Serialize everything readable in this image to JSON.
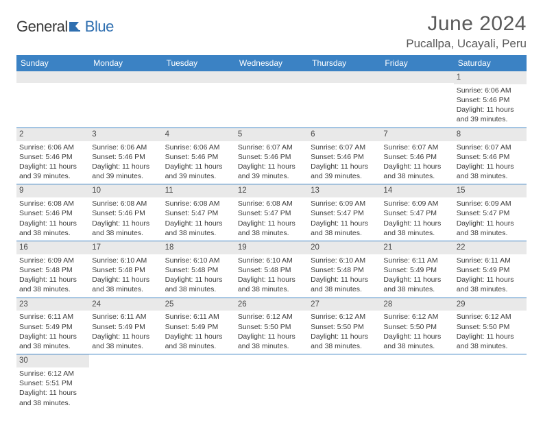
{
  "brand": {
    "part1": "General",
    "part2": "Blue"
  },
  "title": "June 2024",
  "location": "Pucallpa, Ucayali, Peru",
  "colors": {
    "header_bg": "#3b82c4",
    "header_text": "#ffffff",
    "daynum_bg": "#e9e9e9",
    "text": "#3a3a3a",
    "row_divider": "#3b82c4",
    "title_color": "#5a5a5a"
  },
  "layout": {
    "columns": 7,
    "rows": 6,
    "cell_font_size_pt": 10.5,
    "daynum_font_size_pt": 11.5,
    "weekday_font_size_pt": 12,
    "title_font_size_pt": 30,
    "location_font_size_pt": 17
  },
  "weekdays": [
    "Sunday",
    "Monday",
    "Tuesday",
    "Wednesday",
    "Thursday",
    "Friday",
    "Saturday"
  ],
  "weeks": [
    [
      null,
      null,
      null,
      null,
      null,
      null,
      {
        "d": "1",
        "sr": "Sunrise: 6:06 AM",
        "ss": "Sunset: 5:46 PM",
        "dl": "Daylight: 11 hours and 39 minutes."
      }
    ],
    [
      {
        "d": "2",
        "sr": "Sunrise: 6:06 AM",
        "ss": "Sunset: 5:46 PM",
        "dl": "Daylight: 11 hours and 39 minutes."
      },
      {
        "d": "3",
        "sr": "Sunrise: 6:06 AM",
        "ss": "Sunset: 5:46 PM",
        "dl": "Daylight: 11 hours and 39 minutes."
      },
      {
        "d": "4",
        "sr": "Sunrise: 6:06 AM",
        "ss": "Sunset: 5:46 PM",
        "dl": "Daylight: 11 hours and 39 minutes."
      },
      {
        "d": "5",
        "sr": "Sunrise: 6:07 AM",
        "ss": "Sunset: 5:46 PM",
        "dl": "Daylight: 11 hours and 39 minutes."
      },
      {
        "d": "6",
        "sr": "Sunrise: 6:07 AM",
        "ss": "Sunset: 5:46 PM",
        "dl": "Daylight: 11 hours and 39 minutes."
      },
      {
        "d": "7",
        "sr": "Sunrise: 6:07 AM",
        "ss": "Sunset: 5:46 PM",
        "dl": "Daylight: 11 hours and 38 minutes."
      },
      {
        "d": "8",
        "sr": "Sunrise: 6:07 AM",
        "ss": "Sunset: 5:46 PM",
        "dl": "Daylight: 11 hours and 38 minutes."
      }
    ],
    [
      {
        "d": "9",
        "sr": "Sunrise: 6:08 AM",
        "ss": "Sunset: 5:46 PM",
        "dl": "Daylight: 11 hours and 38 minutes."
      },
      {
        "d": "10",
        "sr": "Sunrise: 6:08 AM",
        "ss": "Sunset: 5:46 PM",
        "dl": "Daylight: 11 hours and 38 minutes."
      },
      {
        "d": "11",
        "sr": "Sunrise: 6:08 AM",
        "ss": "Sunset: 5:47 PM",
        "dl": "Daylight: 11 hours and 38 minutes."
      },
      {
        "d": "12",
        "sr": "Sunrise: 6:08 AM",
        "ss": "Sunset: 5:47 PM",
        "dl": "Daylight: 11 hours and 38 minutes."
      },
      {
        "d": "13",
        "sr": "Sunrise: 6:09 AM",
        "ss": "Sunset: 5:47 PM",
        "dl": "Daylight: 11 hours and 38 minutes."
      },
      {
        "d": "14",
        "sr": "Sunrise: 6:09 AM",
        "ss": "Sunset: 5:47 PM",
        "dl": "Daylight: 11 hours and 38 minutes."
      },
      {
        "d": "15",
        "sr": "Sunrise: 6:09 AM",
        "ss": "Sunset: 5:47 PM",
        "dl": "Daylight: 11 hours and 38 minutes."
      }
    ],
    [
      {
        "d": "16",
        "sr": "Sunrise: 6:09 AM",
        "ss": "Sunset: 5:48 PM",
        "dl": "Daylight: 11 hours and 38 minutes."
      },
      {
        "d": "17",
        "sr": "Sunrise: 6:10 AM",
        "ss": "Sunset: 5:48 PM",
        "dl": "Daylight: 11 hours and 38 minutes."
      },
      {
        "d": "18",
        "sr": "Sunrise: 6:10 AM",
        "ss": "Sunset: 5:48 PM",
        "dl": "Daylight: 11 hours and 38 minutes."
      },
      {
        "d": "19",
        "sr": "Sunrise: 6:10 AM",
        "ss": "Sunset: 5:48 PM",
        "dl": "Daylight: 11 hours and 38 minutes."
      },
      {
        "d": "20",
        "sr": "Sunrise: 6:10 AM",
        "ss": "Sunset: 5:48 PM",
        "dl": "Daylight: 11 hours and 38 minutes."
      },
      {
        "d": "21",
        "sr": "Sunrise: 6:11 AM",
        "ss": "Sunset: 5:49 PM",
        "dl": "Daylight: 11 hours and 38 minutes."
      },
      {
        "d": "22",
        "sr": "Sunrise: 6:11 AM",
        "ss": "Sunset: 5:49 PM",
        "dl": "Daylight: 11 hours and 38 minutes."
      }
    ],
    [
      {
        "d": "23",
        "sr": "Sunrise: 6:11 AM",
        "ss": "Sunset: 5:49 PM",
        "dl": "Daylight: 11 hours and 38 minutes."
      },
      {
        "d": "24",
        "sr": "Sunrise: 6:11 AM",
        "ss": "Sunset: 5:49 PM",
        "dl": "Daylight: 11 hours and 38 minutes."
      },
      {
        "d": "25",
        "sr": "Sunrise: 6:11 AM",
        "ss": "Sunset: 5:49 PM",
        "dl": "Daylight: 11 hours and 38 minutes."
      },
      {
        "d": "26",
        "sr": "Sunrise: 6:12 AM",
        "ss": "Sunset: 5:50 PM",
        "dl": "Daylight: 11 hours and 38 minutes."
      },
      {
        "d": "27",
        "sr": "Sunrise: 6:12 AM",
        "ss": "Sunset: 5:50 PM",
        "dl": "Daylight: 11 hours and 38 minutes."
      },
      {
        "d": "28",
        "sr": "Sunrise: 6:12 AM",
        "ss": "Sunset: 5:50 PM",
        "dl": "Daylight: 11 hours and 38 minutes."
      },
      {
        "d": "29",
        "sr": "Sunrise: 6:12 AM",
        "ss": "Sunset: 5:50 PM",
        "dl": "Daylight: 11 hours and 38 minutes."
      }
    ],
    [
      {
        "d": "30",
        "sr": "Sunrise: 6:12 AM",
        "ss": "Sunset: 5:51 PM",
        "dl": "Daylight: 11 hours and 38 minutes."
      },
      null,
      null,
      null,
      null,
      null,
      null
    ]
  ]
}
